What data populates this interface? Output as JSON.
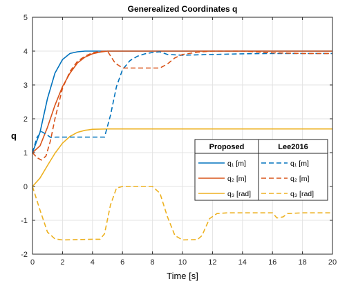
{
  "chart_data": {
    "type": "line",
    "title": "Generealized Coordinates q",
    "xlabel": "Time [s]",
    "ylabel": "q",
    "xlim": [
      0,
      20
    ],
    "ylim": [
      -2,
      5
    ],
    "xticks": [
      "0",
      "2",
      "4",
      "6",
      "8",
      "10",
      "12",
      "14",
      "16",
      "18",
      "20"
    ],
    "yticks": [
      "-2",
      "-1",
      "0",
      "1",
      "2",
      "3",
      "4",
      "5"
    ],
    "grid": true,
    "legend": {
      "placement": "center-right",
      "group_titles": [
        "Proposed",
        "Lee2016"
      ],
      "entries": [
        {
          "group": "Proposed",
          "label": "q₁ [m]"
        },
        {
          "group": "Proposed",
          "label": "q₂ [m]"
        },
        {
          "group": "Proposed",
          "label": "q₃ [rad]"
        },
        {
          "group": "Lee2016",
          "label": "q₁ [m]"
        },
        {
          "group": "Lee2016",
          "label": "q₂ [m]"
        },
        {
          "group": "Lee2016",
          "label": "q₃ [rad]"
        }
      ]
    },
    "series": [
      {
        "group": "Proposed",
        "color": "#0072BD",
        "dash": "solid",
        "x": [
          0,
          0.5,
          1,
          1.5,
          2,
          2.5,
          3,
          3.5,
          4,
          5,
          6,
          8,
          10,
          15,
          20
        ],
        "y": [
          1.0,
          1.6,
          2.6,
          3.35,
          3.75,
          3.93,
          3.98,
          4.0,
          4.0,
          4.0,
          4.0,
          4.0,
          4.0,
          4.0,
          4.0
        ]
      },
      {
        "group": "Proposed",
        "color": "#D95319",
        "dash": "solid",
        "x": [
          0,
          0.5,
          1,
          1.5,
          2,
          2.5,
          3,
          3.5,
          4,
          4.5,
          5,
          6,
          8,
          10,
          15,
          20
        ],
        "y": [
          1.0,
          1.2,
          1.75,
          2.4,
          2.95,
          3.35,
          3.65,
          3.82,
          3.92,
          3.97,
          4.0,
          4.0,
          4.0,
          4.0,
          4.0,
          4.0
        ]
      },
      {
        "group": "Proposed",
        "color": "#EDB120",
        "dash": "solid",
        "x": [
          0,
          0.5,
          1,
          1.5,
          2,
          2.5,
          3,
          3.5,
          4,
          5,
          6,
          8,
          10,
          15,
          20
        ],
        "y": [
          0.0,
          0.25,
          0.62,
          0.98,
          1.28,
          1.48,
          1.6,
          1.66,
          1.69,
          1.7,
          1.7,
          1.7,
          1.7,
          1.7,
          1.7
        ]
      },
      {
        "group": "Lee2016",
        "color": "#0072BD",
        "dash": "dashed",
        "x": [
          0,
          0.3,
          0.6,
          0.9,
          1.2,
          1.6,
          2,
          3,
          4,
          4.8,
          5.2,
          5.6,
          6,
          6.5,
          7,
          7.5,
          8,
          8.5,
          9,
          10,
          12,
          14,
          16,
          18,
          20
        ],
        "y": [
          1.0,
          1.45,
          1.62,
          1.55,
          1.45,
          1.46,
          1.46,
          1.46,
          1.46,
          1.46,
          2.1,
          2.95,
          3.45,
          3.72,
          3.85,
          3.92,
          3.96,
          3.98,
          3.9,
          3.88,
          3.9,
          3.92,
          3.93,
          3.93,
          3.93
        ]
      },
      {
        "group": "Lee2016",
        "color": "#D95319",
        "dash": "dashed",
        "x": [
          0,
          0.3,
          0.6,
          0.9,
          1.2,
          1.5,
          2,
          2.5,
          3,
          3.5,
          4,
          4.5,
          5,
          5.5,
          6,
          7,
          8,
          8.5,
          9,
          9.5,
          10,
          11,
          12,
          14,
          16,
          18,
          20
        ],
        "y": [
          1.0,
          0.85,
          0.78,
          0.9,
          1.35,
          2.0,
          2.9,
          3.4,
          3.7,
          3.85,
          3.95,
          3.99,
          4.0,
          3.65,
          3.5,
          3.5,
          3.5,
          3.5,
          3.62,
          3.8,
          3.9,
          3.97,
          4.0,
          4.0,
          3.95,
          3.93,
          3.93
        ]
      },
      {
        "group": "Lee2016",
        "color": "#EDB120",
        "dash": "dashed",
        "x": [
          0,
          0.5,
          1,
          1.5,
          2,
          3,
          4,
          4.5,
          4.8,
          5.2,
          5.6,
          6,
          7,
          8,
          8.5,
          9,
          9.5,
          10,
          11,
          11.3,
          11.8,
          12.3,
          13,
          14,
          15,
          16,
          16.3,
          16.7,
          17,
          18,
          19,
          20
        ],
        "y": [
          0.0,
          -0.7,
          -1.35,
          -1.55,
          -1.58,
          -1.57,
          -1.56,
          -1.56,
          -1.4,
          -0.55,
          -0.05,
          0.0,
          0.0,
          0.0,
          -0.2,
          -0.9,
          -1.45,
          -1.58,
          -1.57,
          -1.45,
          -0.95,
          -0.8,
          -0.78,
          -0.78,
          -0.78,
          -0.78,
          -0.93,
          -0.9,
          -0.8,
          -0.78,
          -0.78,
          -0.78
        ]
      }
    ]
  }
}
